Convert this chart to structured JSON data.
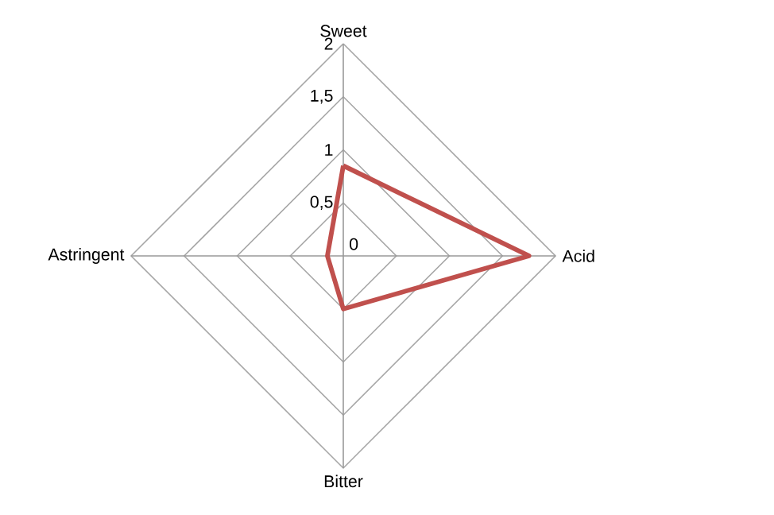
{
  "chart_data": {
    "type": "radar",
    "categories": [
      "Sweet",
      "Acid",
      "Bitter",
      "Astringent"
    ],
    "series": [
      {
        "color": "#c0504d",
        "values": [
          0.85,
          1.75,
          0.5,
          0.15
        ]
      }
    ],
    "ylim": [
      0,
      2
    ],
    "yticks": [
      {
        "value": 0,
        "label": "0"
      },
      {
        "value": 0.5,
        "label": "0,5"
      },
      {
        "value": 1,
        "label": "1"
      },
      {
        "value": 1.5,
        "label": "1,5"
      },
      {
        "value": 2,
        "label": "2"
      }
    ],
    "grid": true
  }
}
